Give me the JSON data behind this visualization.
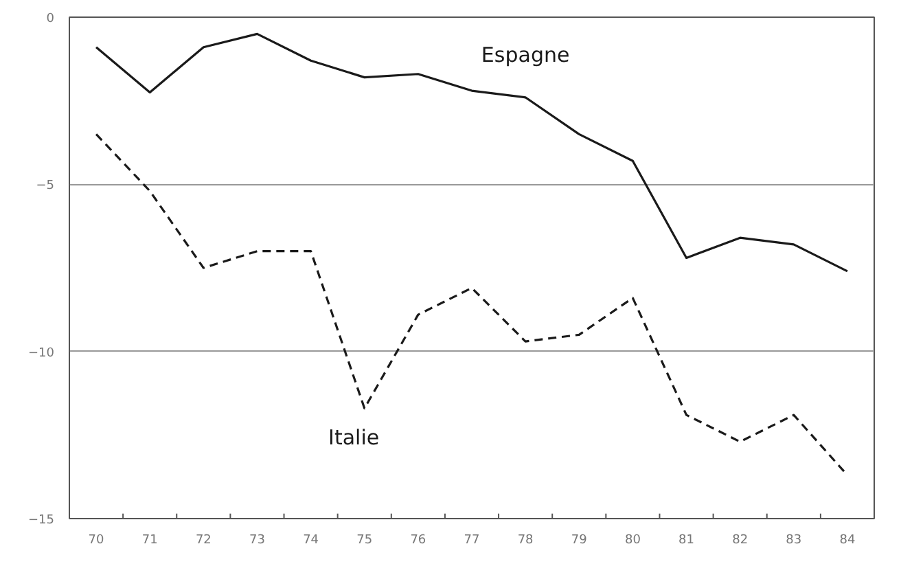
{
  "chart_data": {
    "type": "line",
    "categories": [
      "70",
      "71",
      "72",
      "73",
      "74",
      "75",
      "76",
      "77",
      "78",
      "79",
      "80",
      "81",
      "82",
      "83",
      "84"
    ],
    "series": [
      {
        "name": "Espagne",
        "color": "#1a1a1a",
        "line_style": "solid",
        "values": [
          -0.9,
          -2.25,
          -0.9,
          -0.5,
          -1.3,
          -1.8,
          -1.7,
          -2.2,
          -2.4,
          -3.5,
          -4.3,
          -7.2,
          -6.6,
          -6.8,
          -7.6
        ]
      },
      {
        "name": "Italie",
        "color": "#1a1a1a",
        "line_style": "dashed",
        "values": [
          -3.5,
          -5.2,
          -7.5,
          -7.0,
          -7.0,
          -11.7,
          -8.9,
          -8.1,
          -9.7,
          -9.5,
          -8.4,
          -11.9,
          -12.7,
          -11.9,
          -13.7
        ]
      }
    ],
    "ylim": [
      -15,
      0
    ],
    "yticks": [
      -15,
      -10,
      -5,
      0
    ],
    "grid": "y",
    "marker": "none"
  }
}
